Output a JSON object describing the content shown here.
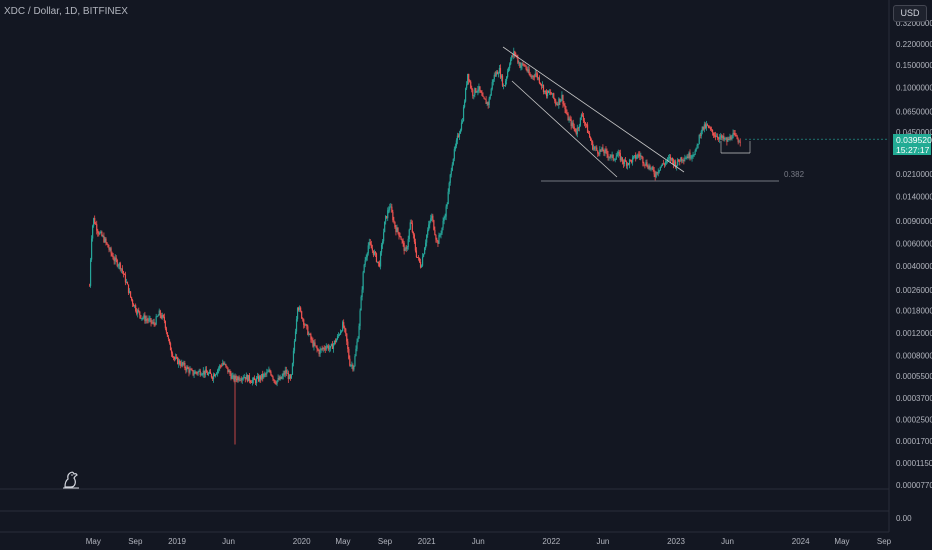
{
  "header": {
    "title": "XDC / Dollar, 1D, BITFINEX"
  },
  "currency": {
    "label": "USD"
  },
  "last_price": {
    "price": "0.03952000",
    "countdown": "15:27:17"
  },
  "fib_label": "0.382",
  "price_axis": [
    {
      "label": "0.32000000",
      "value": 0.32
    },
    {
      "label": "0.22000000",
      "value": 0.22
    },
    {
      "label": "0.15000000",
      "value": 0.15
    },
    {
      "label": "0.10000000",
      "value": 0.1
    },
    {
      "label": "0.06500000",
      "value": 0.065
    },
    {
      "label": "0.04500000",
      "value": 0.045
    },
    {
      "label": "0.02100000",
      "value": 0.021
    },
    {
      "label": "0.01400000",
      "value": 0.014
    },
    {
      "label": "0.00900000",
      "value": 0.009
    },
    {
      "label": "0.00600000",
      "value": 0.006
    },
    {
      "label": "0.00400000",
      "value": 0.004
    },
    {
      "label": "0.00260000",
      "value": 0.0026
    },
    {
      "label": "0.00180000",
      "value": 0.0018
    },
    {
      "label": "0.00120000",
      "value": 0.0012
    },
    {
      "label": "0.00080000",
      "value": 0.0008
    },
    {
      "label": "0.00055000",
      "value": 0.00055
    },
    {
      "label": "0.00037000",
      "value": 0.00037
    },
    {
      "label": "0.00025000",
      "value": 0.00025
    },
    {
      "label": "0.00017000",
      "value": 0.00017
    },
    {
      "label": "0.00011500",
      "value": 0.000115
    },
    {
      "label": "0.00007700",
      "value": 7.7e-05
    }
  ],
  "volume_axis_label": "0.00",
  "time_axis": [
    {
      "label": "May",
      "date": "2018-05-01"
    },
    {
      "label": "Sep",
      "date": "2018-09-01"
    },
    {
      "label": "2019",
      "date": "2019-01-01"
    },
    {
      "label": "Jun",
      "date": "2019-06-01"
    },
    {
      "label": "2020",
      "date": "2020-01-01"
    },
    {
      "label": "May",
      "date": "2020-05-01"
    },
    {
      "label": "Sep",
      "date": "2020-09-01"
    },
    {
      "label": "2021",
      "date": "2021-01-01"
    },
    {
      "label": "Jun",
      "date": "2021-06-01"
    },
    {
      "label": "2022",
      "date": "2022-01-01"
    },
    {
      "label": "Jun",
      "date": "2022-06-01"
    },
    {
      "label": "2023",
      "date": "2023-01-01"
    },
    {
      "label": "Jun",
      "date": "2023-06-01"
    },
    {
      "label": "2024",
      "date": "2024-01-01"
    },
    {
      "label": "May",
      "date": "2024-05-01"
    },
    {
      "label": "Sep",
      "date": "2024-09-01"
    }
  ],
  "colors": {
    "up": "#26a69a",
    "down": "#ef5350",
    "background": "#131722",
    "grid": "#2a2e39",
    "trendline": "#c8c8c8"
  },
  "chart_data": {
    "type": "line",
    "scale": "log",
    "series": [
      {
        "x": [
          "2018-04-20",
          "2018-04-25",
          "2018-05-01",
          "2018-05-15",
          "2018-06-01",
          "2018-06-15",
          "2018-07-01",
          "2018-07-20",
          "2018-08-05",
          "2018-08-20",
          "2018-09-05",
          "2018-09-20",
          "2018-10-10",
          "2018-10-25",
          "2018-11-10",
          "2018-11-25",
          "2018-12-10",
          "2018-12-25",
          "2019-01-15",
          "2019-02-15",
          "2019-03-15",
          "2019-04-15",
          "2019-05-15",
          "2019-06-15",
          "2019-07-15",
          "2019-08-15",
          "2019-09-15",
          "2019-10-01",
          "2019-10-15",
          "2019-11-01",
          "2019-11-15",
          "2019-12-01",
          "2019-12-20",
          "2020-01-10",
          "2020-02-01",
          "2020-02-20",
          "2020-03-13",
          "2020-03-25",
          "2020-04-15",
          "2020-05-01",
          "2020-05-10",
          "2020-05-20",
          "2020-06-01",
          "2020-06-15",
          "2020-07-01",
          "2020-07-15",
          "2020-08-01",
          "2020-08-15",
          "2020-09-01",
          "2020-09-15",
          "2020-10-01",
          "2020-10-15",
          "2020-11-01",
          "2020-11-15",
          "2020-12-01",
          "2020-12-15",
          "2021-01-01",
          "2021-01-15",
          "2021-02-01",
          "2021-02-15",
          "2021-03-01",
          "2021-03-15",
          "2021-04-01",
          "2021-04-15",
          "2021-05-01",
          "2021-05-15",
          "2021-06-01",
          "2021-06-15",
          "2021-07-01",
          "2021-07-15",
          "2021-08-01",
          "2021-08-15",
          "2021-09-01",
          "2021-09-15",
          "2021-10-01",
          "2021-10-15",
          "2021-11-01",
          "2021-11-15",
          "2021-12-01",
          "2021-12-15",
          "2022-01-01",
          "2022-01-15",
          "2022-02-01",
          "2022-02-15",
          "2022-03-01",
          "2022-03-15",
          "2022-04-01",
          "2022-04-15",
          "2022-05-01",
          "2022-05-15",
          "2022-06-01",
          "2022-06-15",
          "2022-07-01",
          "2022-07-15",
          "2022-08-01",
          "2022-08-15",
          "2022-09-01",
          "2022-09-15",
          "2022-10-01",
          "2022-10-15",
          "2022-11-01",
          "2022-11-15",
          "2022-12-01",
          "2022-12-15",
          "2023-01-01",
          "2023-01-15",
          "2023-02-01",
          "2023-02-15",
          "2023-03-01",
          "2023-03-15",
          "2023-04-01",
          "2023-04-15",
          "2023-05-01",
          "2023-05-15",
          "2023-06-01",
          "2023-06-15",
          "2023-07-01",
          "2023-07-10"
        ],
        "y": [
          0.0028,
          0.0065,
          0.0095,
          0.0075,
          0.0065,
          0.0055,
          0.0045,
          0.004,
          0.003,
          0.0022,
          0.0018,
          0.0016,
          0.0015,
          0.0014,
          0.0017,
          0.0015,
          0.00095,
          0.00075,
          0.00068,
          0.00058,
          0.0006,
          0.00055,
          0.0007,
          0.00052,
          0.00055,
          0.0005,
          0.00056,
          0.0006,
          0.0005,
          0.00052,
          0.0006,
          0.0005,
          0.002,
          0.0014,
          0.001,
          0.00085,
          0.00095,
          0.0009,
          0.0011,
          0.0014,
          0.0011,
          0.0007,
          0.00065,
          0.0012,
          0.004,
          0.006,
          0.005,
          0.004,
          0.009,
          0.012,
          0.008,
          0.007,
          0.005,
          0.009,
          0.005,
          0.004,
          0.007,
          0.01,
          0.006,
          0.008,
          0.012,
          0.025,
          0.04,
          0.055,
          0.13,
          0.09,
          0.1,
          0.08,
          0.075,
          0.12,
          0.14,
          0.1,
          0.16,
          0.19,
          0.15,
          0.15,
          0.12,
          0.13,
          0.11,
          0.09,
          0.09,
          0.075,
          0.085,
          0.06,
          0.052,
          0.045,
          0.062,
          0.048,
          0.035,
          0.032,
          0.032,
          0.03,
          0.028,
          0.03,
          0.026,
          0.026,
          0.028,
          0.03,
          0.026,
          0.024,
          0.021,
          0.024,
          0.026,
          0.028,
          0.025,
          0.028,
          0.029,
          0.03,
          0.032,
          0.047,
          0.05,
          0.045,
          0.042,
          0.04,
          0.038,
          0.043,
          0.039,
          0.0395
        ]
      }
    ]
  }
}
